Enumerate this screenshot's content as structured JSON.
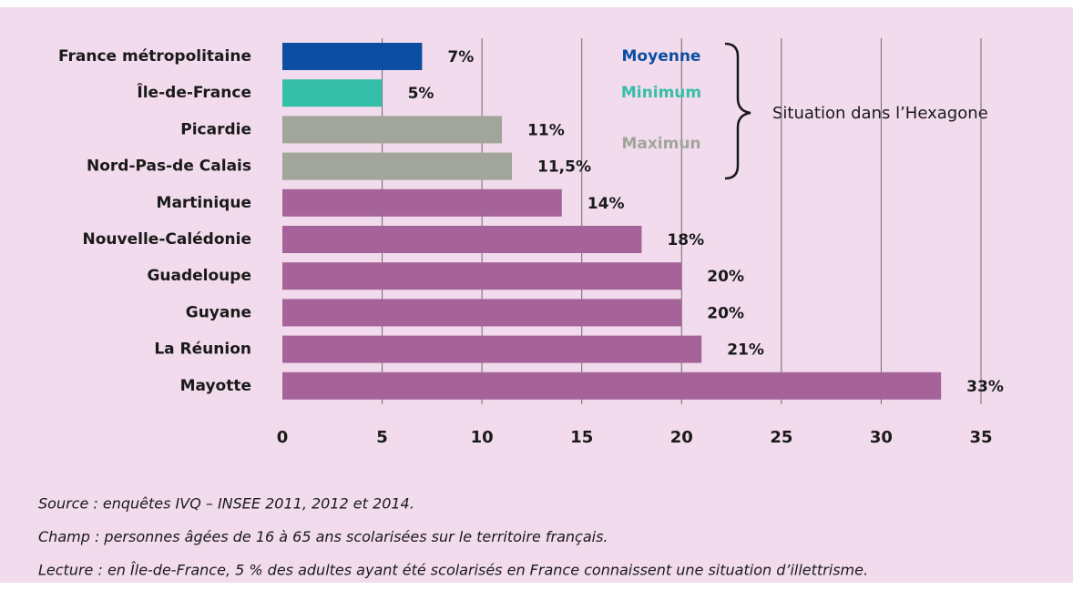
{
  "chart_data": {
    "type": "hbar",
    "categories": [
      "France métropolitaine",
      "Île-de-France",
      "Picardie",
      "Nord-Pas-de Calais",
      "Martinique",
      "Nouvelle-Calédonie",
      "Guadeloupe",
      "Guyane",
      "La Réunion",
      "Mayotte"
    ],
    "values": [
      7,
      5,
      11,
      11.5,
      14,
      18,
      20,
      20,
      21,
      33
    ],
    "value_labels": [
      "7%",
      "5%",
      "11%",
      "11,5%",
      "14%",
      "18%",
      "20%",
      "20%",
      "21%",
      "33%"
    ],
    "colors": [
      "#0b4ea2",
      "#35bfa8",
      "#a1a59c",
      "#a1a59c",
      "#a66399",
      "#a66399",
      "#a66399",
      "#a66399",
      "#a66399",
      "#a66399"
    ],
    "xlim": [
      0,
      35
    ],
    "xticks": [
      0,
      5,
      10,
      15,
      20,
      25,
      30,
      35
    ],
    "grid": true,
    "annotations": [
      {
        "text": "Moyenne",
        "color": "#0b4ea2"
      },
      {
        "text": "Minimum",
        "color": "#35bfa8"
      },
      {
        "text": "Maximun",
        "color": "#a1a59c"
      }
    ],
    "brace_label": "Situation dans l’Hexagone",
    "footnotes": [
      "Source : enquêtes IVQ – INSEE 2011, 2012 et 2014.",
      "Champ : personnes âgées de 16 à 65 ans scolarisées sur le territoire français.",
      "Lecture : en Île-de-France, 5 % des adultes ayant été scolarisés en France connaissent une situation d’illettrisme."
    ]
  }
}
